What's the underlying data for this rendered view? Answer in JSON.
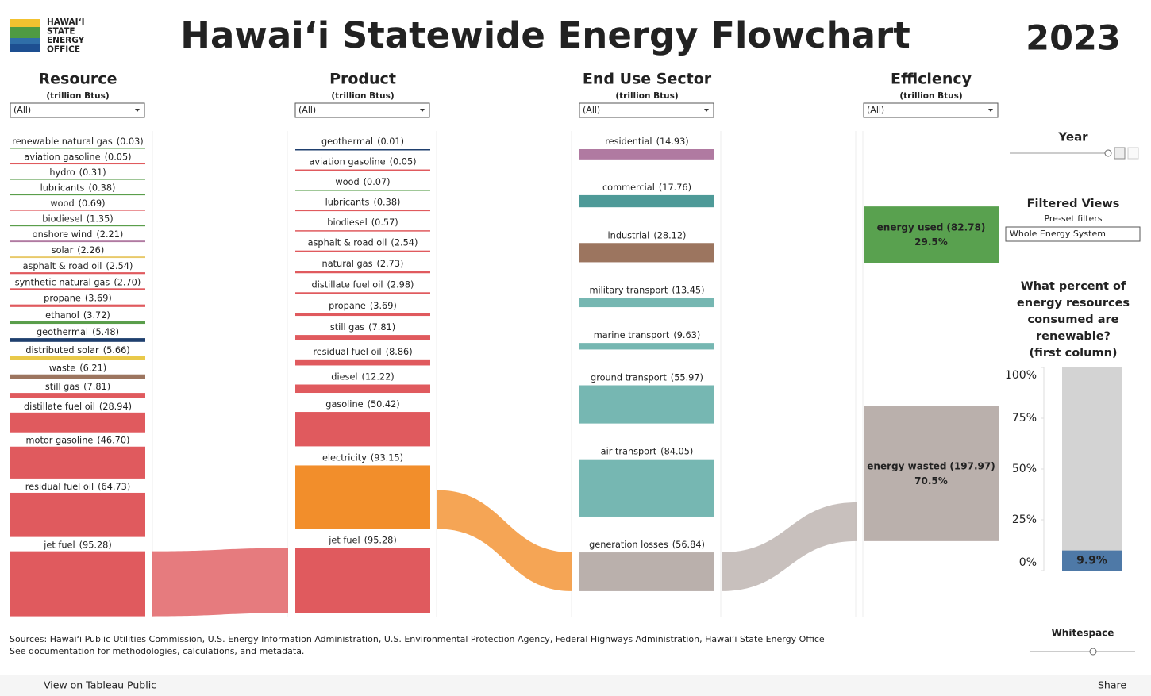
{
  "header": {
    "logo_lines": [
      "HAWAIʻI",
      "STATE",
      "ENERGY",
      "OFFICE"
    ],
    "title": "Hawaiʻi Statewide Energy Flowchart",
    "year": "2023"
  },
  "chart_data": [
    {
      "type": "sankey",
      "columns": [
        {
          "name": "Resource",
          "unit": "(trillion Btus)",
          "filter": "(All)",
          "nodes": [
            {
              "label": "renewable natural gas",
              "value": 0.03,
              "value_label": "(0.03)",
              "color": "#5a9e4b"
            },
            {
              "label": "aviation gasoline",
              "value": 0.05,
              "value_label": "(0.05)",
              "color": "#e05a5e"
            },
            {
              "label": "hydro",
              "value": 0.31,
              "value_label": "(0.31)",
              "color": "#5a9e4b"
            },
            {
              "label": "lubricants",
              "value": 0.38,
              "value_label": "(0.38)",
              "color": "#5a9e4b"
            },
            {
              "label": "wood",
              "value": 0.69,
              "value_label": "(0.69)",
              "color": "#e05a5e"
            },
            {
              "label": "biodiesel",
              "value": 1.35,
              "value_label": "(1.35)",
              "color": "#5a9e4b"
            },
            {
              "label": "onshore wind",
              "value": 2.21,
              "value_label": "(2.21)",
              "color": "#b07aa1"
            },
            {
              "label": "solar",
              "value": 2.26,
              "value_label": "(2.26)",
              "color": "#e8c96a"
            },
            {
              "label": "asphalt & road oil",
              "value": 2.54,
              "value_label": "(2.54)",
              "color": "#e05a5e"
            },
            {
              "label": "synthetic natural gas",
              "value": 2.7,
              "value_label": "(2.70)",
              "color": "#e05a5e"
            },
            {
              "label": "propane",
              "value": 3.69,
              "value_label": "(3.69)",
              "color": "#e05a5e"
            },
            {
              "label": "ethanol",
              "value": 3.72,
              "value_label": "(3.72)",
              "color": "#5a9e4b"
            },
            {
              "label": "geothermal",
              "value": 5.48,
              "value_label": "(5.48)",
              "color": "#1f3f6e"
            },
            {
              "label": "distributed solar",
              "value": 5.66,
              "value_label": "(5.66)",
              "color": "#e9c94a"
            },
            {
              "label": "waste",
              "value": 6.21,
              "value_label": "(6.21)",
              "color": "#9c755f"
            },
            {
              "label": "still gas",
              "value": 7.81,
              "value_label": "(7.81)",
              "color": "#e05a5e"
            },
            {
              "label": "distillate fuel oil",
              "value": 28.94,
              "value_label": "(28.94)",
              "color": "#e05a5e"
            },
            {
              "label": "motor gasoline",
              "value": 46.7,
              "value_label": "(46.70)",
              "color": "#e05a5e"
            },
            {
              "label": "residual fuel oil",
              "value": 64.73,
              "value_label": "(64.73)",
              "color": "#e05a5e"
            },
            {
              "label": "jet fuel",
              "value": 95.28,
              "value_label": "(95.28)",
              "color": "#e05a5e"
            }
          ]
        },
        {
          "name": "Product",
          "unit": "(trillion Btus)",
          "filter": "(All)",
          "nodes": [
            {
              "label": "geothermal",
              "value": 0.01,
              "value_label": "(0.01)",
              "color": "#1f3f6e"
            },
            {
              "label": "aviation gasoline",
              "value": 0.05,
              "value_label": "(0.05)",
              "color": "#e05a5e"
            },
            {
              "label": "wood",
              "value": 0.07,
              "value_label": "(0.07)",
              "color": "#5a9e4b"
            },
            {
              "label": "lubricants",
              "value": 0.38,
              "value_label": "(0.38)",
              "color": "#e05a5e"
            },
            {
              "label": "biodiesel",
              "value": 0.57,
              "value_label": "(0.57)",
              "color": "#e05a5e"
            },
            {
              "label": "asphalt & road oil",
              "value": 2.54,
              "value_label": "(2.54)",
              "color": "#e05a5e"
            },
            {
              "label": "natural gas",
              "value": 2.73,
              "value_label": "(2.73)",
              "color": "#e05a5e"
            },
            {
              "label": "distillate fuel oil",
              "value": 2.98,
              "value_label": "(2.98)",
              "color": "#e05a5e"
            },
            {
              "label": "propane",
              "value": 3.69,
              "value_label": "(3.69)",
              "color": "#e05a5e"
            },
            {
              "label": "still gas",
              "value": 7.81,
              "value_label": "(7.81)",
              "color": "#e05a5e"
            },
            {
              "label": "residual fuel oil",
              "value": 8.86,
              "value_label": "(8.86)",
              "color": "#e05a5e"
            },
            {
              "label": "diesel",
              "value": 12.22,
              "value_label": "(12.22)",
              "color": "#e05a5e"
            },
            {
              "label": "gasoline",
              "value": 50.42,
              "value_label": "(50.42)",
              "color": "#e05a5e"
            },
            {
              "label": "electricity",
              "value": 93.15,
              "value_label": "(93.15)",
              "color": "#f28e2b"
            },
            {
              "label": "jet fuel",
              "value": 95.28,
              "value_label": "(95.28)",
              "color": "#e05a5e"
            }
          ]
        },
        {
          "name": "End Use Sector",
          "unit": "(trillion Btus)",
          "filter": "(All)",
          "nodes": [
            {
              "label": "residential",
              "value": 14.93,
              "value_label": "(14.93)",
              "color": "#b07aa1"
            },
            {
              "label": "commercial",
              "value": 17.76,
              "value_label": "(17.76)",
              "color": "#4e9a98"
            },
            {
              "label": "industrial",
              "value": 28.12,
              "value_label": "(28.12)",
              "color": "#9c755f"
            },
            {
              "label": "military transport",
              "value": 13.45,
              "value_label": "(13.45)",
              "color": "#76b7b2"
            },
            {
              "label": "marine transport",
              "value": 9.63,
              "value_label": "(9.63)",
              "color": "#76b7b2"
            },
            {
              "label": "ground transport",
              "value": 55.97,
              "value_label": "(55.97)",
              "color": "#76b7b2"
            },
            {
              "label": "air transport",
              "value": 84.05,
              "value_label": "(84.05)",
              "color": "#76b7b2"
            },
            {
              "label": "generation losses",
              "value": 56.84,
              "value_label": "(56.84)",
              "color": "#bab0ac"
            }
          ]
        },
        {
          "name": "Efficiency",
          "unit": "(trillion Btus)",
          "filter": "(All)",
          "nodes": [
            {
              "label": "energy used",
              "value": 82.78,
              "value_label": "(82.78)",
              "share": 29.5,
              "share_label": "29.5%",
              "color": "#59a14f"
            },
            {
              "label": "energy wasted",
              "value": 197.97,
              "value_label": "(197.97)",
              "share": 70.5,
              "share_label": "70.5%",
              "color": "#bab0ac"
            }
          ]
        }
      ]
    },
    {
      "type": "bar",
      "title_lines": [
        "What percent of",
        "energy resources",
        "consumed are",
        "renewable?",
        "(first column)"
      ],
      "values": [
        9.9
      ],
      "value_labels": [
        "9.9%"
      ],
      "color": "#4e79a7",
      "background": "#d3d3d3",
      "ylim": [
        0,
        100
      ],
      "yticks": [
        {
          "value": 0,
          "label": "0%"
        },
        {
          "value": 25,
          "label": "25%"
        },
        {
          "value": 50,
          "label": "50%"
        },
        {
          "value": 75,
          "label": "75%"
        },
        {
          "value": 100,
          "label": "100%"
        }
      ]
    }
  ],
  "controls": {
    "year_label": "Year",
    "filtered_views": "Filtered Views",
    "preset": "Pre-set filters",
    "preset_value": "Whole Energy System",
    "whitespace": "Whitespace"
  },
  "footer": {
    "sources": "Sources: Hawaiʻi Public Utilities Commission, U.S. Energy Information Administration, U.S. Environmental Protection Agency, Federal Highways Administration, Hawaiʻi State Energy Office",
    "note": "See documentation for methodologies, calculations, and metadata."
  },
  "toolbar": {
    "view": "View on Tableau Public",
    "share": "Share"
  }
}
